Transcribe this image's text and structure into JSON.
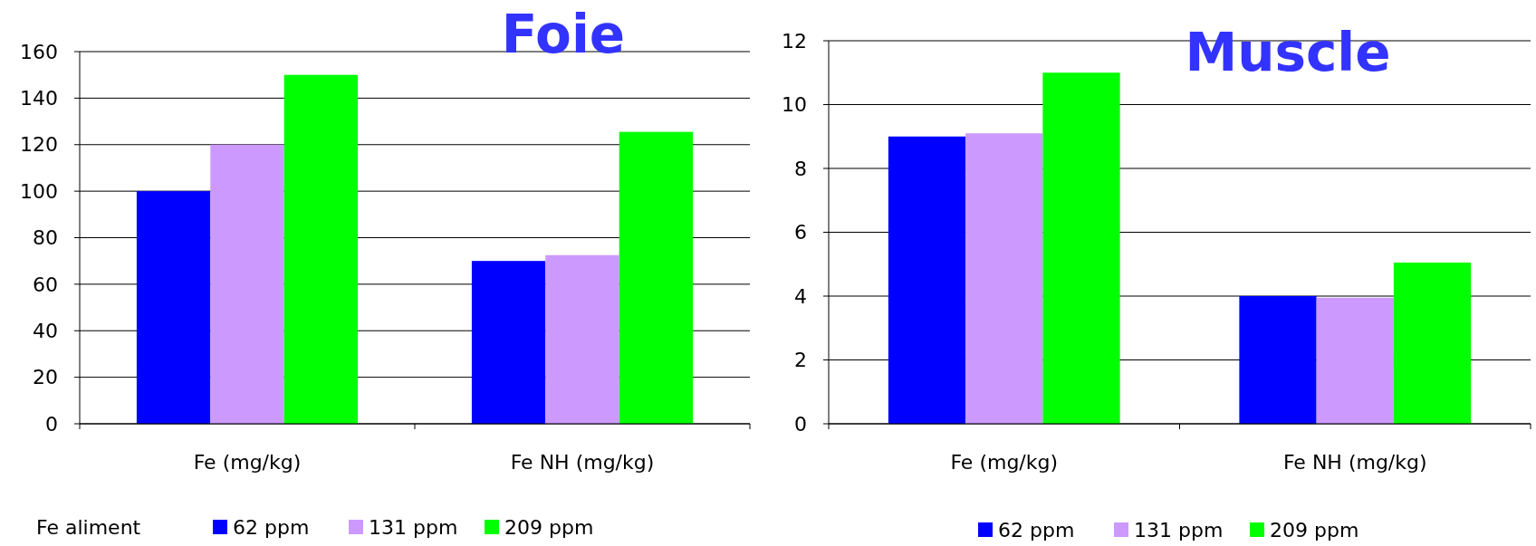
{
  "chart_data": [
    {
      "type": "bar",
      "title": "Foie",
      "categories": [
        "Fe (mg/kg)",
        "Fe NH (mg/kg)"
      ],
      "ylim": [
        0,
        160
      ],
      "yticks": [
        0,
        20,
        40,
        60,
        80,
        100,
        120,
        140,
        160
      ],
      "grid": "y",
      "legend": "bottom",
      "legend_title": "Fe aliment",
      "series": [
        {
          "name": "62 ppm",
          "color": "#0000ff",
          "values": [
            100,
            70
          ]
        },
        {
          "name": "131 ppm",
          "color": "#cc99ff",
          "values": [
            120,
            72.5
          ]
        },
        {
          "name": "209 ppm",
          "color": "#00ff00",
          "values": [
            150,
            125.5
          ]
        }
      ]
    },
    {
      "type": "bar",
      "title": "Muscle",
      "categories": [
        "Fe (mg/kg)",
        "Fe NH (mg/kg)"
      ],
      "ylim": [
        0,
        12
      ],
      "yticks": [
        0,
        2,
        4,
        6,
        8,
        10,
        12
      ],
      "grid": "y",
      "legend": "bottom",
      "series": [
        {
          "name": "62 ppm",
          "color": "#0000ff",
          "values": [
            9,
            4
          ]
        },
        {
          "name": "131 ppm",
          "color": "#cc99ff",
          "values": [
            9.1,
            3.95
          ]
        },
        {
          "name": "209 ppm",
          "color": "#00ff00",
          "values": [
            11,
            5.05
          ]
        }
      ]
    }
  ]
}
